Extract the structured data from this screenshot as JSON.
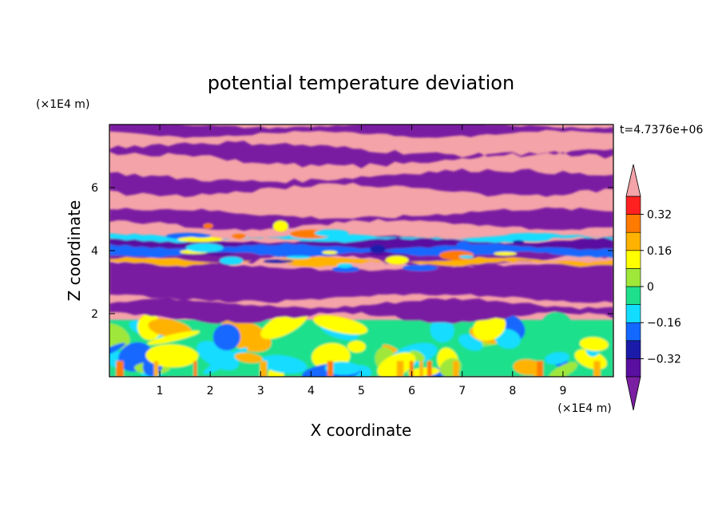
{
  "chart_data": {
    "type": "heatmap",
    "title": "potential temperature deviation",
    "xlabel": "X coordinate",
    "ylabel": "Z coordinate",
    "x_unit": "(×1E4 m)",
    "y_unit": "(×1E4 m)",
    "time_label": "t=4.7376e+06",
    "xlim": [
      0,
      10
    ],
    "ylim": [
      0,
      8
    ],
    "x_ticks": [
      1,
      2,
      3,
      4,
      5,
      6,
      7,
      8,
      9
    ],
    "y_ticks": [
      2,
      4,
      6
    ],
    "colorbar": {
      "levels": [
        -0.4,
        -0.32,
        -0.24,
        -0.16,
        -0.08,
        0,
        0.08,
        0.16,
        0.24,
        0.32,
        0.4
      ],
      "labels": [
        "0.32",
        "0.16",
        "0",
        "−0.16",
        "−0.32"
      ],
      "label_values": [
        0.32,
        0.16,
        0,
        -0.16,
        -0.32
      ],
      "under_color": "#7a1fa2",
      "over_color": "#f4a3a8",
      "colors": [
        "#5a0fa0",
        "#1b1baa",
        "#1268ff",
        "#12ddff",
        "#1ee08c",
        "#9fe83a",
        "#ffff00",
        "#ffb300",
        "#ff7a00",
        "#ff2020"
      ]
    },
    "layers": [
      {
        "z_range": [
          0,
          1.8
        ],
        "description_value": "mixed -0.24 to 0.32 (cyan, green, yellow)"
      },
      {
        "z_range": [
          1.8,
          2.4
        ],
        "value": "over"
      },
      {
        "z_range": [
          2.4,
          3.6
        ],
        "value": "under"
      },
      {
        "z_range": [
          3.6,
          4.6
        ],
        "value": "mixed -0.4 to 0.4"
      },
      {
        "z_range": [
          4.6,
          8.0
        ],
        "value": "alternating over/under bands"
      }
    ]
  }
}
